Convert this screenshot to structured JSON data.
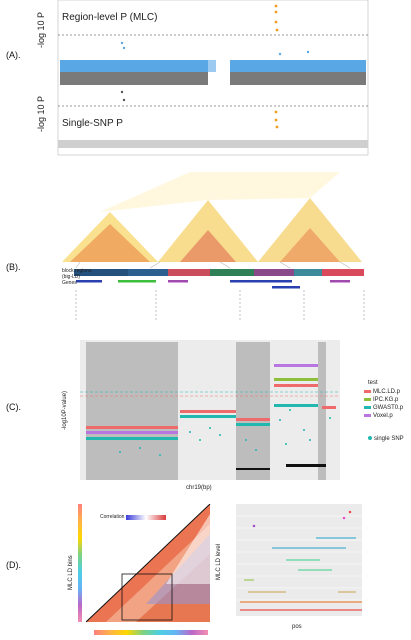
{
  "panels": {
    "a": {
      "label": "(A).",
      "title_top": "Region-level P (MLC)",
      "title_bottom": "Single-SNP P",
      "ylabel_top": "-log 10 P",
      "ylabel_bottom": "-log 10 P",
      "colors": {
        "top_points": "#5aa7e6",
        "bottom_points": "#777777",
        "highlight": "#f0a020"
      }
    },
    "b": {
      "label": "(B).",
      "track_label_blocks": "block regions\n(big-LD)",
      "track_label_genes": "Genes",
      "block_colors": [
        "#24507d",
        "#2f7f57",
        "#c94d5a",
        "#8a4a8a",
        "#d94b5c",
        "#3d8a9a"
      ],
      "gene_colors": [
        "#2a3fb0",
        "#3cbf3c",
        "#a04ab0",
        "#2a3fb0",
        "#a04ab0"
      ]
    },
    "c": {
      "label": "(C).",
      "ylabel": "-log10P-value)",
      "xlabel": "chr19(bp)",
      "legend_title": "test",
      "legend_items": [
        "MLC.LD.p",
        "IPC.KG.p",
        "GWAST0.p",
        "Voxel.p"
      ],
      "legend_colors": [
        "#ef6b6b",
        "#8fbf3a",
        "#22b8b0",
        "#b776e0"
      ],
      "single_snp_label": "single SNP"
    },
    "d": {
      "label": "(D).",
      "ylabel_left": "MLC LD bins",
      "legend_title": "Correlation",
      "ylabel_right": "MLC LD level",
      "xlabel_right": "pos"
    }
  }
}
